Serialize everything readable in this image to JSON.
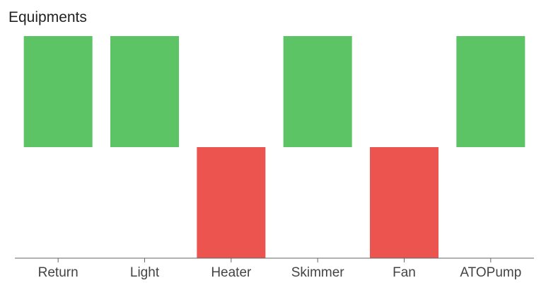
{
  "chart_data": {
    "type": "bar",
    "title": "Equipments",
    "xlabel": "",
    "ylabel": "",
    "categories": [
      "Return",
      "Light",
      "Heater",
      "Skimmer",
      "Fan",
      "ATOPump"
    ],
    "values": [
      1,
      1,
      -1,
      1,
      -1,
      1
    ],
    "ylim": [
      -1,
      1
    ],
    "grid": false,
    "legend": "none",
    "colors": {
      "positive": "#5cc465",
      "negative": "#ec5450",
      "axis": "#666666"
    }
  }
}
